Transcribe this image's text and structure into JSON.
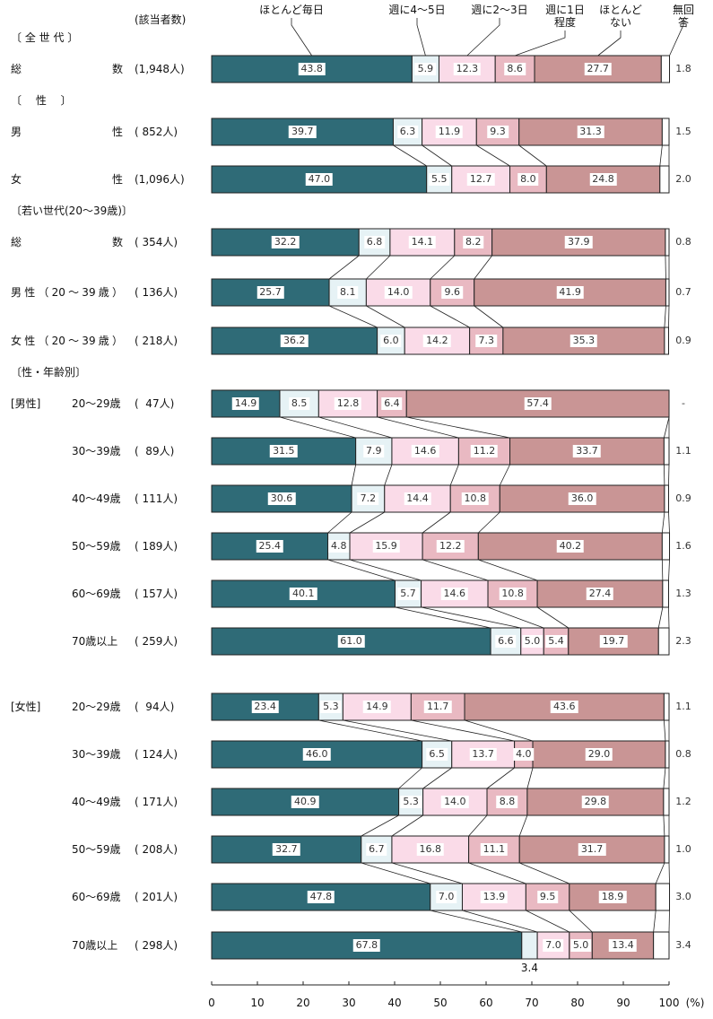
{
  "chart_data": {
    "type": "stacked_bar",
    "count_header": "(該当者数)",
    "categories": [
      "総数",
      "男性",
      "女性",
      "総数",
      "男性（20～39歳）",
      "女性（20～39歳）",
      "20～29歳",
      "30～39歳",
      "40～49歳",
      "50～59歳",
      "60～69歳",
      "70歳以上",
      "20～29歳",
      "30～39歳",
      "40～49歳",
      "50～59歳",
      "60～69歳",
      "70歳以上"
    ],
    "counts": [
      "(1,948人)",
      "( 852人)",
      "(1,096人)",
      "( 354人)",
      "( 136人)",
      "( 218人)",
      "(  47人)",
      "(  89人)",
      "( 111人)",
      "( 189人)",
      "( 157人)",
      "( 259人)",
      "(  94人)",
      "( 124人)",
      "( 171人)",
      "( 208人)",
      "( 201人)",
      "( 298人)"
    ],
    "section_labels": [
      "〔 全 世 代 〕",
      "〔　 性 　〕",
      null,
      "〔若い世代(20～39歳)〕",
      null,
      null,
      "〔性・年齢別〕",
      null,
      null,
      null,
      null,
      null,
      null,
      null,
      null,
      null,
      null,
      null
    ],
    "sub_labels": [
      null,
      null,
      null,
      null,
      null,
      null,
      "[男性]",
      null,
      null,
      null,
      null,
      null,
      "[女性]",
      null,
      null,
      null,
      null,
      null
    ],
    "series": [
      {
        "name": "ほとんど毎日",
        "color": "#2f6b77",
        "values": [
          43.8,
          39.7,
          47.0,
          32.2,
          25.7,
          36.2,
          14.9,
          31.5,
          30.6,
          25.4,
          40.1,
          61.0,
          23.4,
          46.0,
          40.9,
          32.7,
          47.8,
          67.8
        ],
        "value_labels": [
          "43.8",
          "39.7",
          "47.0",
          "32.2",
          "25.7",
          "36.2",
          "14.9",
          "31.5",
          "30.6",
          "25.4",
          "40.1",
          "61.0",
          "23.4",
          "46.0",
          "40.9",
          "32.7",
          "47.8",
          "67.8"
        ]
      },
      {
        "name": "週に4～5日",
        "color": "#e6f2f5",
        "values": [
          5.9,
          6.3,
          5.5,
          6.8,
          8.1,
          6.0,
          8.5,
          7.9,
          7.2,
          4.8,
          5.7,
          6.6,
          5.3,
          6.5,
          5.3,
          6.7,
          7.0,
          3.4
        ],
        "value_labels": [
          "5.9",
          "6.3",
          "5.5",
          "6.8",
          "8.1",
          "6.0",
          "8.5",
          "7.9",
          "7.2",
          "4.8",
          "5.7",
          "6.6",
          "5.3",
          "6.5",
          "5.3",
          "6.7",
          "7.0",
          "3.4"
        ]
      },
      {
        "name": "週に2～3日",
        "color": "#fadbe8",
        "values": [
          12.3,
          11.9,
          12.7,
          14.1,
          14.0,
          14.2,
          12.8,
          14.6,
          14.4,
          15.9,
          14.6,
          5.0,
          14.9,
          13.7,
          14.0,
          16.8,
          13.9,
          7.0
        ],
        "value_labels": [
          "12.3",
          "11.9",
          "12.7",
          "14.1",
          "14.0",
          "14.2",
          "12.8",
          "14.6",
          "14.4",
          "15.9",
          "14.6",
          "5.0",
          "14.9",
          "13.7",
          "14.0",
          "16.8",
          "13.9",
          "7.0"
        ]
      },
      {
        "name": "週に1日\n程度",
        "color": "#e9b9c2",
        "values": [
          8.6,
          9.3,
          8.0,
          8.2,
          9.6,
          7.3,
          6.4,
          11.2,
          10.8,
          12.2,
          10.8,
          5.4,
          11.7,
          4.0,
          8.8,
          11.1,
          9.5,
          5.0
        ],
        "value_labels": [
          "8.6",
          "9.3",
          "8.0",
          "8.2",
          "9.6",
          "7.3",
          "6.4",
          "11.2",
          "10.8",
          "12.2",
          "10.8",
          "5.4",
          "11.7",
          "4.0",
          "8.8",
          "11.1",
          "9.5",
          "5.0"
        ]
      },
      {
        "name": "ほとんど\nない",
        "color": "#c99595",
        "values": [
          27.7,
          31.3,
          24.8,
          37.9,
          41.9,
          35.3,
          57.4,
          33.7,
          36.0,
          40.2,
          27.4,
          19.7,
          43.6,
          29.0,
          29.8,
          31.7,
          18.9,
          13.4
        ],
        "value_labels": [
          "27.7",
          "31.3",
          "24.8",
          "37.9",
          "41.9",
          "35.3",
          "57.4",
          "33.7",
          "36.0",
          "40.2",
          "27.4",
          "19.7",
          "43.6",
          "29.0",
          "29.8",
          "31.7",
          "18.9",
          "13.4"
        ]
      },
      {
        "name": "無回答",
        "color": "#ffffff",
        "values": [
          1.8,
          1.5,
          2.0,
          0.8,
          0.7,
          0.9,
          0,
          1.1,
          0.9,
          1.6,
          1.3,
          2.3,
          1.1,
          0.8,
          1.2,
          1.0,
          3.0,
          3.4
        ],
        "value_labels": [
          "1.8",
          "1.5",
          "2.0",
          "0.8",
          "0.7",
          "0.9",
          "-",
          "1.1",
          "0.9",
          "1.6",
          "1.3",
          "2.3",
          "1.1",
          "0.8",
          "1.2",
          "1.0",
          "3.0",
          "3.4"
        ]
      }
    ],
    "xlim": [
      0,
      100
    ],
    "xticks": [
      0,
      10,
      20,
      30,
      40,
      50,
      60,
      70,
      80,
      90,
      100
    ],
    "x_label": "(%)"
  }
}
